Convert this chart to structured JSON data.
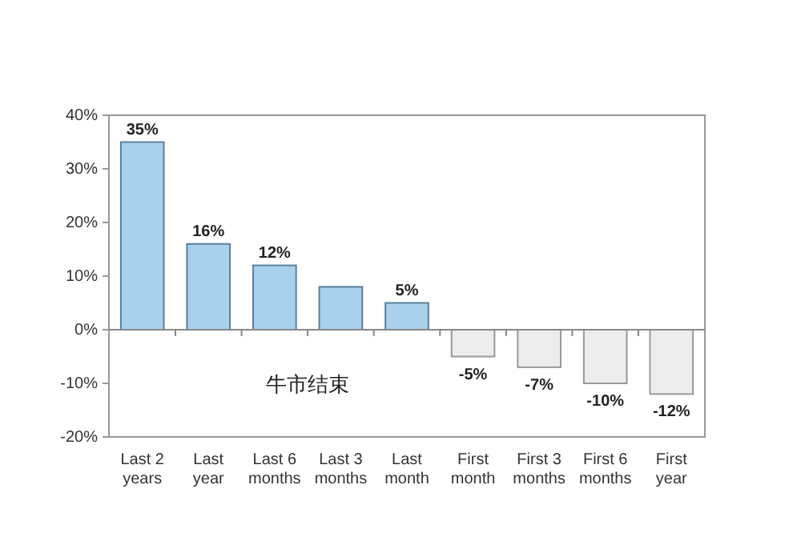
{
  "chart_data": {
    "type": "bar",
    "categories": [
      "Last 2 years",
      "Last year",
      "Last 6 months",
      "Last 3 months",
      "Last month",
      "First month",
      "First 3 months",
      "First 6 months",
      "First year"
    ],
    "values": [
      35,
      16,
      12,
      8,
      5,
      -5,
      -7,
      -10,
      -12
    ],
    "value_labels": [
      "35%",
      "16%",
      "12%",
      null,
      "5%",
      "-5%",
      "-7%",
      "-10%",
      "-12%"
    ],
    "colors": [
      "#a9d1ee",
      "#a9d1ee",
      "#a9d1ee",
      "#a9d1ee",
      "#a9d1ee",
      "#ececec",
      "#ececec",
      "#ececec",
      "#ececec"
    ],
    "ylim": [
      -20,
      40
    ],
    "yticks": [
      {
        "value": -20,
        "label": "-20%"
      },
      {
        "value": -10,
        "label": "-10%"
      },
      {
        "value": 0,
        "label": "0%"
      },
      {
        "value": 10,
        "label": "10%"
      },
      {
        "value": 20,
        "label": "20%"
      },
      {
        "value": 30,
        "label": "30%"
      },
      {
        "value": 40,
        "label": "40%"
      }
    ],
    "annotations": [
      "牛市结束"
    ]
  }
}
